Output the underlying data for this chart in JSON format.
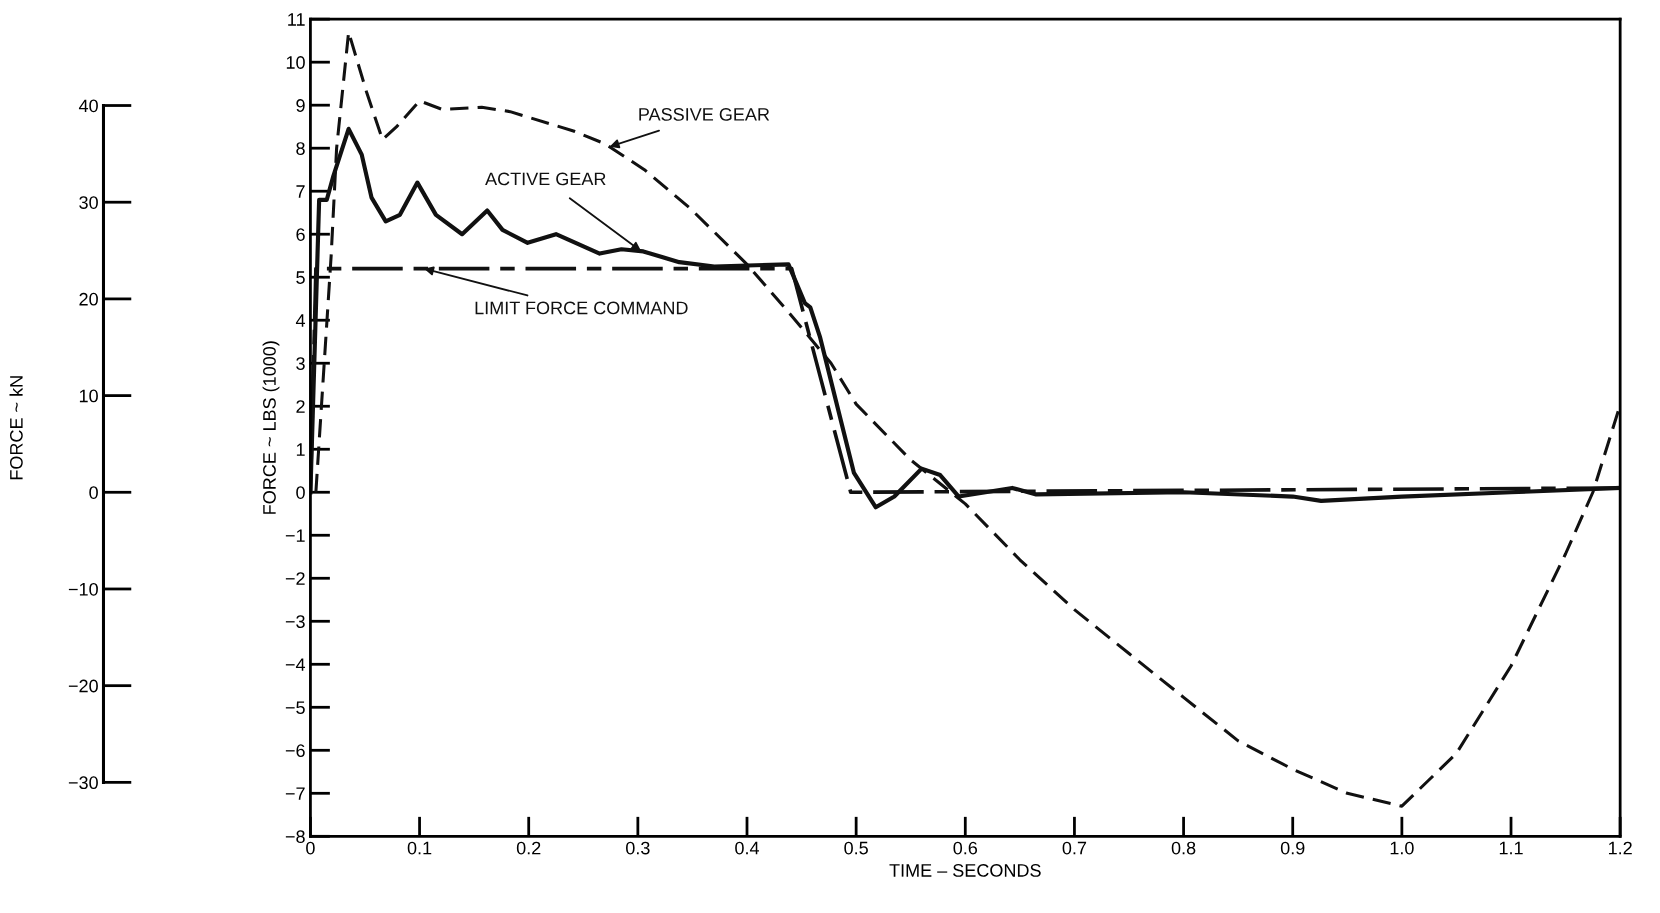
{
  "chart_data": {
    "type": "line",
    "xlabel": "TIME – SECONDS",
    "ylabel": "FORCE ~ LBS (1000)",
    "y2label": "FORCE ~ kN",
    "xlim": [
      0,
      1.2
    ],
    "xticks": [
      0,
      0.1,
      0.2,
      0.3,
      0.4,
      0.5,
      0.6,
      0.7,
      0.8,
      0.9,
      {
        "value": 1,
        "label": "1.0"
      },
      1.1,
      1.2
    ],
    "ylim": [
      -8,
      11
    ],
    "yticks": [
      {
        "value": -8,
        "label": "−8"
      },
      {
        "value": -7,
        "label": "−7"
      },
      {
        "value": -6,
        "label": "−6"
      },
      {
        "value": -5,
        "label": "−5"
      },
      {
        "value": -4,
        "label": "−4"
      },
      {
        "value": -3,
        "label": "−3"
      },
      {
        "value": -2,
        "label": "−2"
      },
      {
        "value": -1,
        "label": "−1"
      },
      0,
      1,
      2,
      3,
      4,
      5,
      6,
      7,
      8,
      9,
      10,
      11
    ],
    "y2lim": [
      -35.58,
      48.93
    ],
    "y2ticks": [
      {
        "value": -30,
        "label": "−30"
      },
      {
        "value": -20,
        "label": "−20"
      },
      {
        "value": -10,
        "label": "−10"
      },
      0,
      10,
      20,
      30,
      40
    ],
    "grid": false,
    "legend": false,
    "marker": "none",
    "series": [
      {
        "name": "PASSIVE GEAR",
        "color": "#111111",
        "line_style": "dashed",
        "x": [
          0.005,
          0.019,
          0.024,
          0.035,
          0.0515,
          0.066,
          0.079,
          0.1,
          0.121,
          0.157,
          0.183,
          0.241,
          0.27,
          0.306,
          0.348,
          0.4,
          0.441,
          0.477,
          0.5,
          0.55,
          0.6,
          0.65,
          0.7,
          0.75,
          0.8,
          0.85,
          0.9,
          0.95,
          1.0,
          1.05,
          1.1,
          1.15,
          1.175,
          1.2
        ],
        "values": [
          0,
          5.5,
          8.0,
          10.7,
          9.3,
          8.2,
          8.5,
          9.1,
          8.9,
          8.95,
          8.85,
          8.4,
          8.1,
          7.5,
          6.6,
          5.3,
          4.1,
          3.0,
          2.05,
          0.75,
          -0.27,
          -1.57,
          -2.73,
          -3.75,
          -4.77,
          -5.78,
          -6.44,
          -7.0,
          -7.3,
          -6.07,
          -4.04,
          -1.43,
          0,
          2.03
        ]
      },
      {
        "name": "ACTIVE GEAR",
        "color": "#111111",
        "line_style": "solid",
        "x": [
          0,
          0.008,
          0.015,
          0.021,
          0.035,
          0.047,
          0.056,
          0.069,
          0.082,
          0.098,
          0.115,
          0.139,
          0.162,
          0.176,
          0.199,
          0.225,
          0.265,
          0.285,
          0.305,
          0.338,
          0.37,
          0.438,
          0.453,
          0.458,
          0.467,
          0.498,
          0.518,
          0.535,
          0.56,
          0.577,
          0.594,
          0.643,
          0.665,
          0.8,
          0.9,
          0.926,
          1.0,
          1.1,
          1.2
        ],
        "values": [
          0,
          6.8,
          6.8,
          7.35,
          8.45,
          7.85,
          6.85,
          6.3,
          6.45,
          7.2,
          6.45,
          6.0,
          6.55,
          6.1,
          5.8,
          6.0,
          5.55,
          5.65,
          5.6,
          5.35,
          5.25,
          5.3,
          4.4,
          4.3,
          3.6,
          0.45,
          -0.35,
          -0.1,
          0.55,
          0.4,
          -0.1,
          0.1,
          -0.05,
          0,
          -0.1,
          -0.2,
          -0.1,
          0,
          0.1
        ]
      },
      {
        "name": "LIMIT FORCE COMMAND",
        "color": "#111111",
        "line_style": "dashdot",
        "x": [
          0,
          0.005,
          0.441,
          0.495,
          1.2
        ],
        "values": [
          0,
          5.2,
          5.2,
          0,
          0.1
        ]
      }
    ]
  }
}
